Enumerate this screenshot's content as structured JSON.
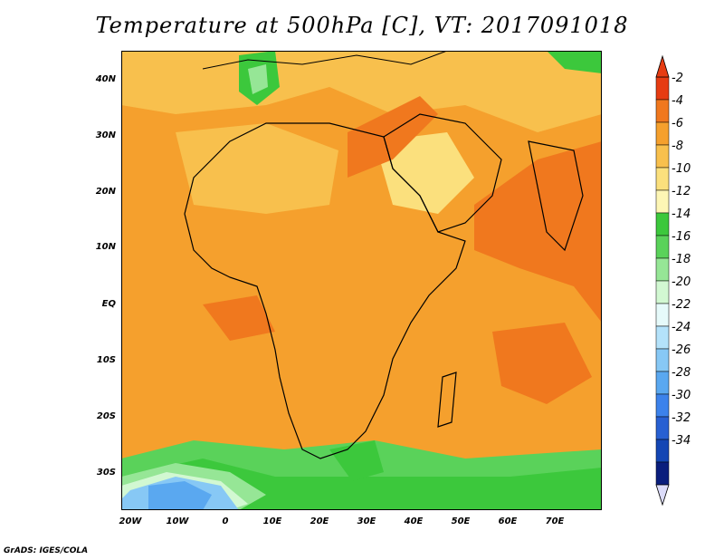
{
  "title": "Temperature at 500hPa [C], VT: 2017091018",
  "credit": "GrADS: IGES/COLA",
  "map": {
    "lat_labels": [
      "40N",
      "30N",
      "20N",
      "10N",
      "EQ",
      "10S",
      "20S",
      "30S"
    ],
    "lon_labels": [
      "20W",
      "10W",
      "0",
      "10E",
      "20E",
      "30E",
      "40E",
      "50E",
      "60E",
      "70E"
    ]
  },
  "colorbar": {
    "levels": [
      "-2",
      "-4",
      "-6",
      "-8",
      "-10",
      "-12",
      "-14",
      "-16",
      "-18",
      "-20",
      "-22",
      "-24",
      "-26",
      "-28",
      "-30",
      "-32",
      "-34"
    ],
    "colors": [
      "#e63c12",
      "#f0781e",
      "#f5a02d",
      "#f8c04d",
      "#fbe07d",
      "#fdf6b5",
      "#3cc83c",
      "#5ad25a",
      "#96e696",
      "#d2f8d2",
      "#e6fafa",
      "#b4e2fa",
      "#87c8f5",
      "#5aa8f0",
      "#3c82eb",
      "#2860d2",
      "#1446b4",
      "#0a1e7d"
    ],
    "top_cap": "#e63c12",
    "bottom_cap": "#dcdcfa"
  }
}
